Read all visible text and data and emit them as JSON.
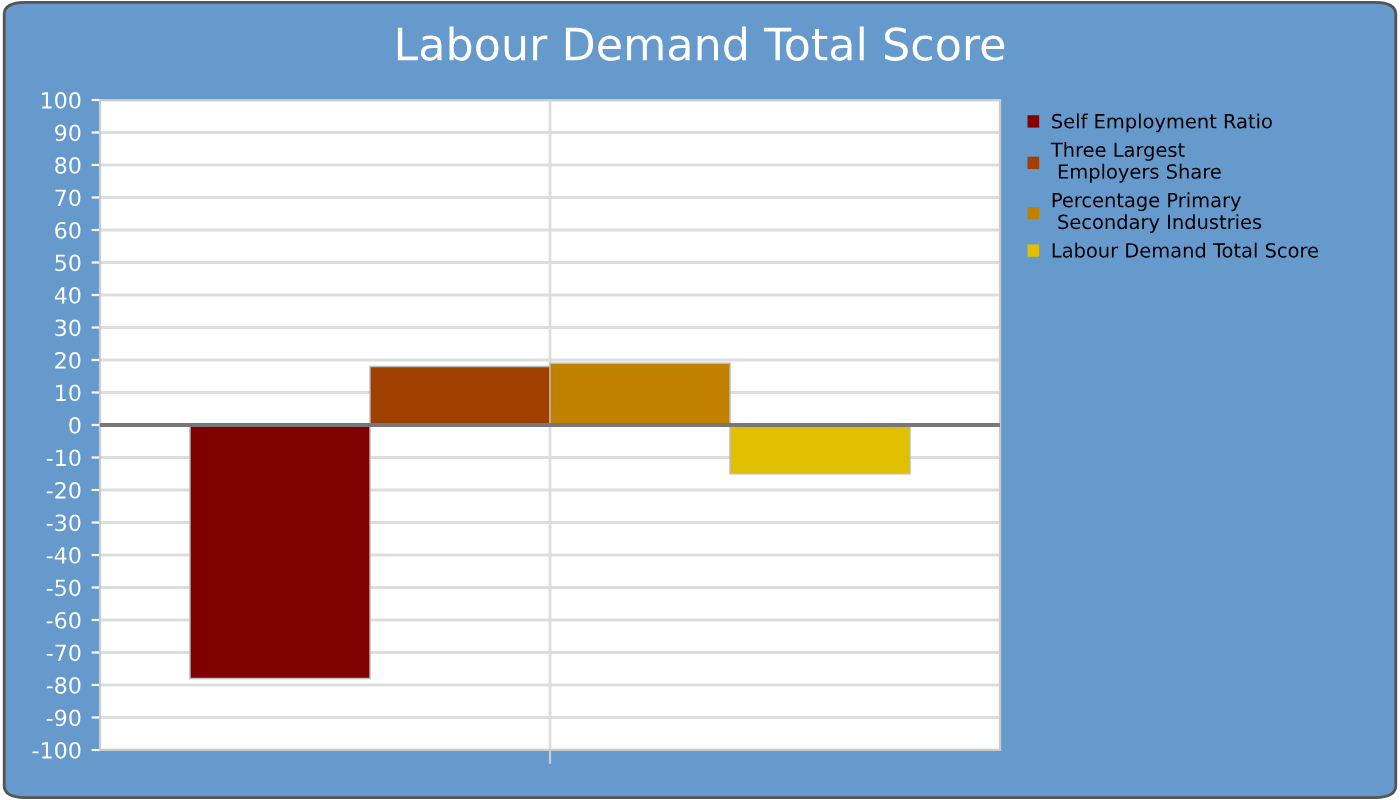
{
  "chart_data": {
    "type": "bar",
    "title": "Labour Demand Total Score",
    "categories": [
      null
    ],
    "series": [
      {
        "name": "Self Employment Ratio",
        "color": "#800000",
        "values": [
          -78
        ]
      },
      {
        "name": "Three Largest\n Employers Share",
        "color": "#a04000",
        "values": [
          18
        ]
      },
      {
        "name": "Percentage Primary\n Secondary Industries",
        "color": "#c08000",
        "values": [
          19
        ]
      },
      {
        "name": "Labour Demand Total Score",
        "color": "#e0c000",
        "values": [
          -15
        ]
      }
    ],
    "ylim": [
      -100,
      100
    ],
    "yticks": [
      -100,
      -90,
      -80,
      -70,
      -60,
      -50,
      -40,
      -30,
      -20,
      -10,
      0,
      10,
      20,
      30,
      40,
      50,
      60,
      70,
      80,
      90,
      100
    ],
    "grid": true,
    "legend": "right"
  }
}
